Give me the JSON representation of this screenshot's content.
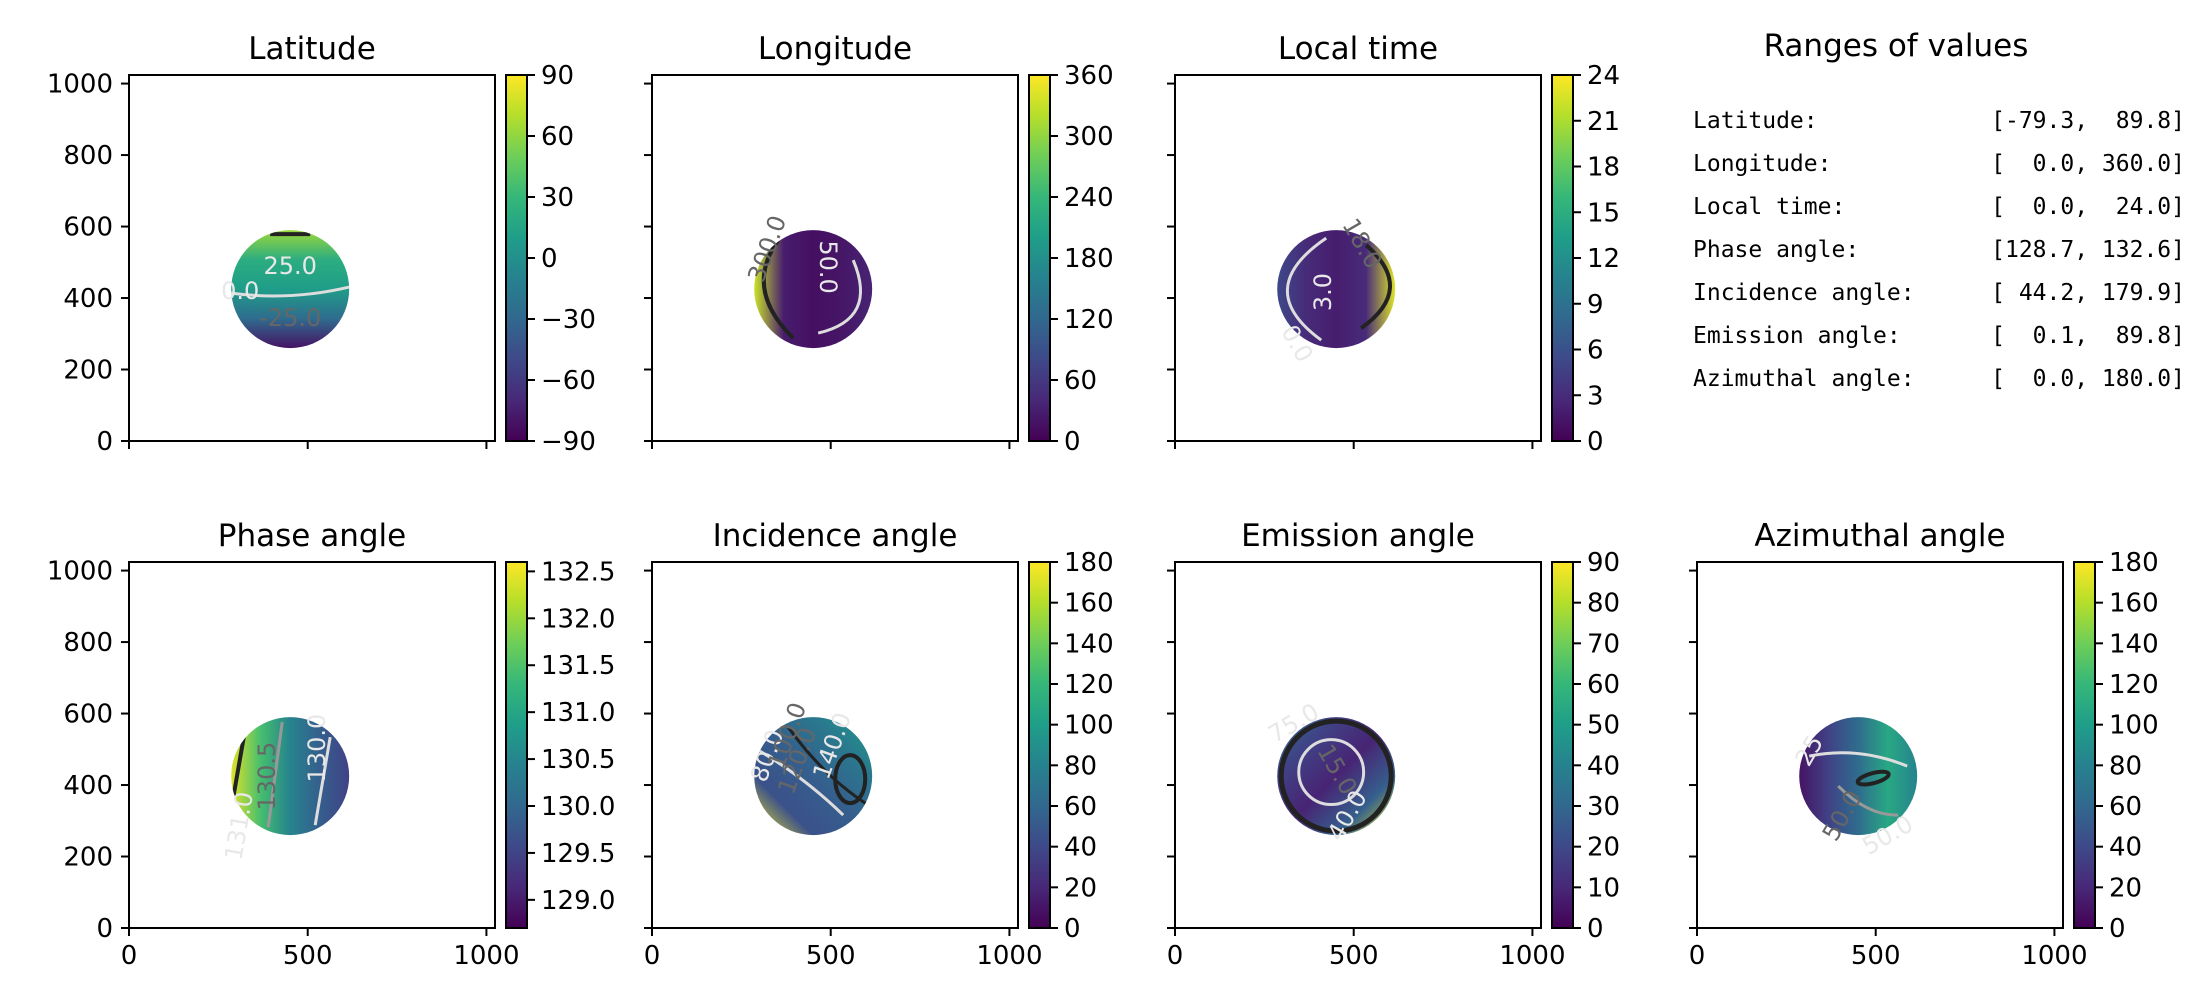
{
  "figure": {
    "ranges_title": "Ranges of values",
    "ranges": [
      {
        "label": "Latitude:",
        "value": "[-79.3,  89.8]"
      },
      {
        "label": "Longitude:",
        "value": "[  0.0, 360.0]"
      },
      {
        "label": "Local time:",
        "value": "[  0.0,  24.0]"
      },
      {
        "label": "Phase angle:",
        "value": "[128.7, 132.6]"
      },
      {
        "label": "Incidence angle:",
        "value": "[ 44.2, 179.9]"
      },
      {
        "label": "Emission angle:",
        "value": "[  0.1,  89.8]"
      },
      {
        "label": "Azimuthal angle:",
        "value": "[  0.0, 180.0]"
      }
    ]
  },
  "chart_data": [
    {
      "type": "heatmap",
      "title": "Latitude",
      "x_ticks": [
        0,
        500,
        1000
      ],
      "y_ticks": [
        0,
        200,
        400,
        600,
        800,
        1000
      ],
      "xlim": [
        0,
        1024
      ],
      "ylim": [
        0,
        1024
      ],
      "colorbar": {
        "min": -90,
        "max": 90,
        "ticks": [
          -90,
          -60,
          -30,
          0,
          30,
          60,
          90
        ],
        "labels": [
          "−90",
          "−60",
          "−30",
          "0",
          "30",
          "60",
          "90"
        ]
      },
      "disk": {
        "center": [
          451,
          425
        ],
        "radius": 165
      },
      "contour_labels": [
        "25.0",
        "-25.0",
        "0.0"
      ],
      "show_xticklabels": false,
      "show_yticklabels": true
    },
    {
      "type": "heatmap",
      "title": "Longitude",
      "x_ticks": [
        0,
        500,
        1000
      ],
      "y_ticks": [
        0,
        200,
        400,
        600,
        800,
        1000
      ],
      "xlim": [
        0,
        1024
      ],
      "ylim": [
        0,
        1024
      ],
      "colorbar": {
        "min": 0,
        "max": 360,
        "ticks": [
          0,
          60,
          120,
          180,
          240,
          300,
          360
        ],
        "labels": [
          "0",
          "60",
          "120",
          "180",
          "240",
          "300",
          "360"
        ]
      },
      "disk": {
        "center": [
          451,
          425
        ],
        "radius": 165
      },
      "contour_labels": [
        "50.0",
        "300.0"
      ],
      "show_xticklabels": false,
      "show_yticklabels": false
    },
    {
      "type": "heatmap",
      "title": "Local time",
      "x_ticks": [
        0,
        500,
        1000
      ],
      "y_ticks": [
        0,
        200,
        400,
        600,
        800,
        1000
      ],
      "xlim": [
        0,
        1024
      ],
      "ylim": [
        0,
        1024
      ],
      "colorbar": {
        "min": 0,
        "max": 24,
        "ticks": [
          0,
          3,
          6,
          9,
          12,
          15,
          18,
          21,
          24
        ],
        "labels": [
          "0",
          "3",
          "6",
          "9",
          "12",
          "15",
          "18",
          "21",
          "24"
        ]
      },
      "disk": {
        "center": [
          451,
          425
        ],
        "radius": 165
      },
      "contour_labels": [
        "3.0",
        "18.0",
        "0.0"
      ],
      "show_xticklabels": false,
      "show_yticklabels": false
    },
    {
      "type": "heatmap",
      "title": "Phase angle",
      "x_ticks": [
        0,
        500,
        1000
      ],
      "y_ticks": [
        0,
        200,
        400,
        600,
        800,
        1000
      ],
      "xlim": [
        0,
        1024
      ],
      "ylim": [
        0,
        1024
      ],
      "colorbar": {
        "min": 128.7,
        "max": 132.6,
        "ticks": [
          129.0,
          129.5,
          130.0,
          130.5,
          131.0,
          131.5,
          132.0,
          132.5
        ],
        "labels": [
          "129.0",
          "129.5",
          "130.0",
          "130.5",
          "131.0",
          "131.5",
          "132.0",
          "132.5"
        ]
      },
      "disk": {
        "center": [
          451,
          425
        ],
        "radius": 165
      },
      "contour_labels": [
        "130.0",
        "130.5",
        "131.0"
      ],
      "show_xticklabels": true,
      "show_yticklabels": true
    },
    {
      "type": "heatmap",
      "title": "Incidence angle",
      "x_ticks": [
        0,
        500,
        1000
      ],
      "y_ticks": [
        0,
        200,
        400,
        600,
        800,
        1000
      ],
      "xlim": [
        0,
        1024
      ],
      "ylim": [
        0,
        1024
      ],
      "colorbar": {
        "min": 0,
        "max": 180,
        "ticks": [
          0,
          20,
          40,
          60,
          80,
          100,
          120,
          140,
          160,
          180
        ],
        "labels": [
          "0",
          "20",
          "40",
          "60",
          "80",
          "100",
          "120",
          "140",
          "160",
          "180"
        ]
      },
      "disk": {
        "center": [
          451,
          425
        ],
        "radius": 165
      },
      "contour_labels": [
        "140.0",
        "120.0",
        "80.0",
        "100.0"
      ],
      "show_xticklabels": true,
      "show_yticklabels": false
    },
    {
      "type": "heatmap",
      "title": "Emission angle",
      "x_ticks": [
        0,
        500,
        1000
      ],
      "y_ticks": [
        0,
        200,
        400,
        600,
        800,
        1000
      ],
      "xlim": [
        0,
        1024
      ],
      "ylim": [
        0,
        1024
      ],
      "colorbar": {
        "min": 0,
        "max": 90,
        "ticks": [
          0,
          10,
          20,
          30,
          40,
          50,
          60,
          70,
          80,
          90
        ],
        "labels": [
          "0",
          "10",
          "20",
          "30",
          "40",
          "50",
          "60",
          "70",
          "80",
          "90"
        ]
      },
      "disk": {
        "center": [
          451,
          425
        ],
        "radius": 165
      },
      "contour_labels": [
        "75.0",
        "15.0",
        "40.0"
      ],
      "show_xticklabels": true,
      "show_yticklabels": false
    },
    {
      "type": "heatmap",
      "title": "Azimuthal angle",
      "x_ticks": [
        0,
        500,
        1000
      ],
      "y_ticks": [
        0,
        200,
        400,
        600,
        800,
        1000
      ],
      "xlim": [
        0,
        1024
      ],
      "ylim": [
        0,
        1024
      ],
      "colorbar": {
        "min": 0,
        "max": 180,
        "ticks": [
          0,
          20,
          40,
          60,
          80,
          100,
          120,
          140,
          160,
          180
        ],
        "labels": [
          "0",
          "20",
          "40",
          "60",
          "80",
          "100",
          "120",
          "140",
          "160",
          "180"
        ]
      },
      "disk": {
        "center": [
          451,
          425
        ],
        "radius": 165
      },
      "contour_labels": [
        "25",
        "50.0",
        "50.0"
      ],
      "show_xticklabels": true,
      "show_yticklabels": false
    }
  ],
  "colors": {
    "viridis": [
      "#440154",
      "#482878",
      "#3e4989",
      "#31688e",
      "#26828e",
      "#1f9e89",
      "#35b779",
      "#6ece58",
      "#b5de2b",
      "#fde725"
    ],
    "axis": "#000000",
    "contour_dark": "#222222",
    "contour_light": "#dddddd",
    "contour_mid": "#999999"
  }
}
